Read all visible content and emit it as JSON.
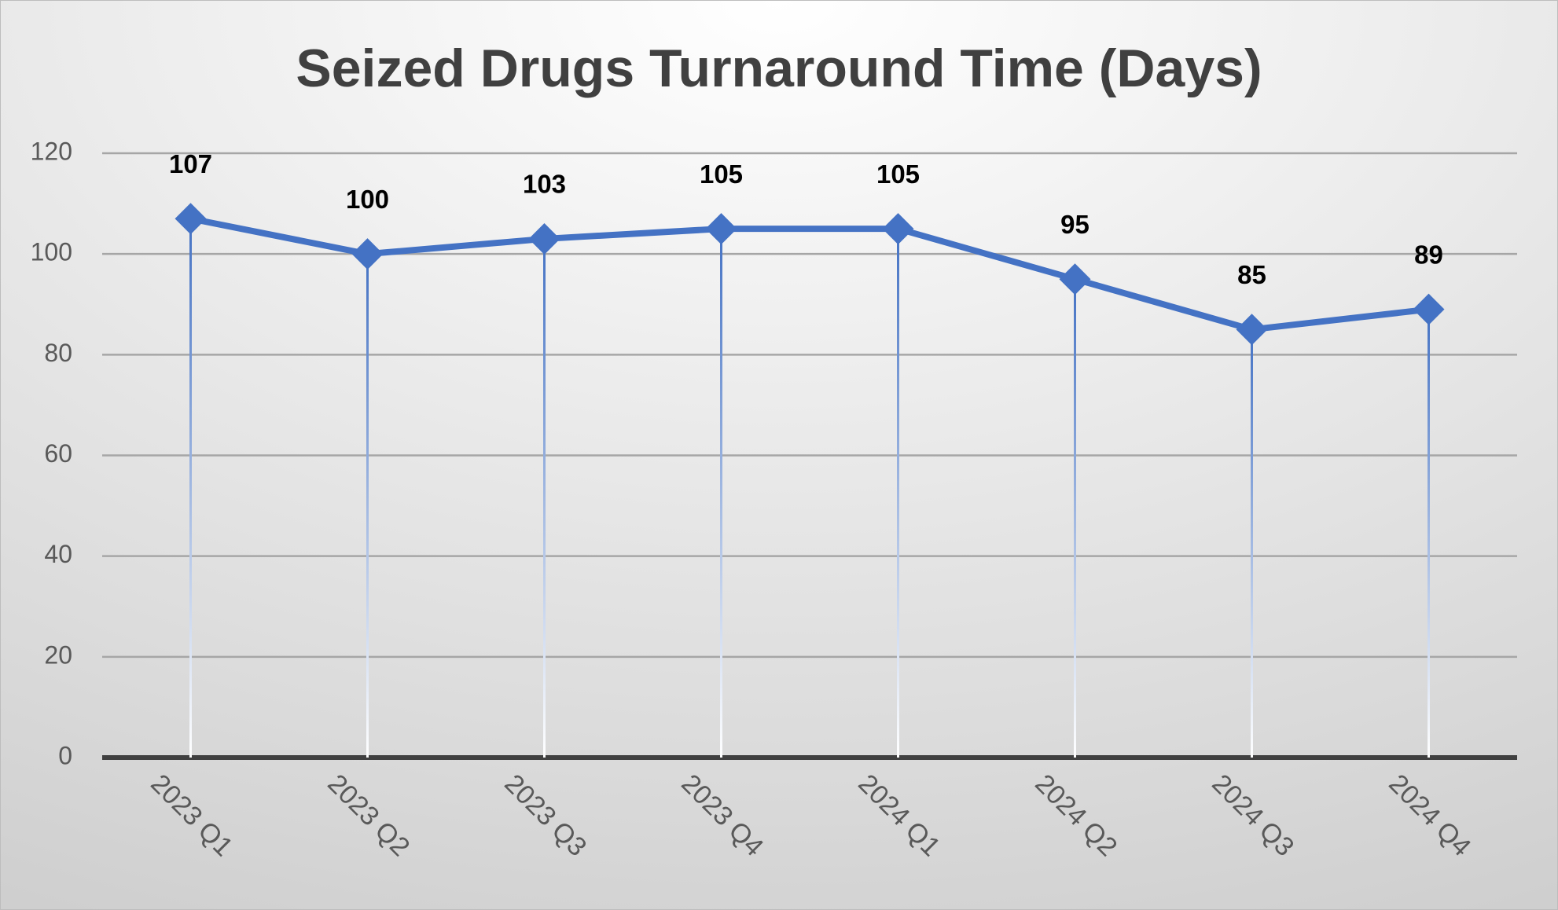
{
  "chart_data": {
    "type": "line",
    "title": "Seized Drugs Turnaround Time (Days)",
    "categories": [
      "2023 Q1",
      "2023 Q2",
      "2023 Q3",
      "2023 Q4",
      "2024 Q1",
      "2024 Q2",
      "2024 Q3",
      "2024 Q4"
    ],
    "values": [
      107,
      100,
      103,
      105,
      105,
      95,
      85,
      89
    ],
    "color": "#4472c4",
    "ylim": [
      0,
      120
    ],
    "yticks": [
      0,
      20,
      40,
      60,
      80,
      100,
      120
    ],
    "grid": true,
    "data_labels": true,
    "drop_lines": true
  }
}
